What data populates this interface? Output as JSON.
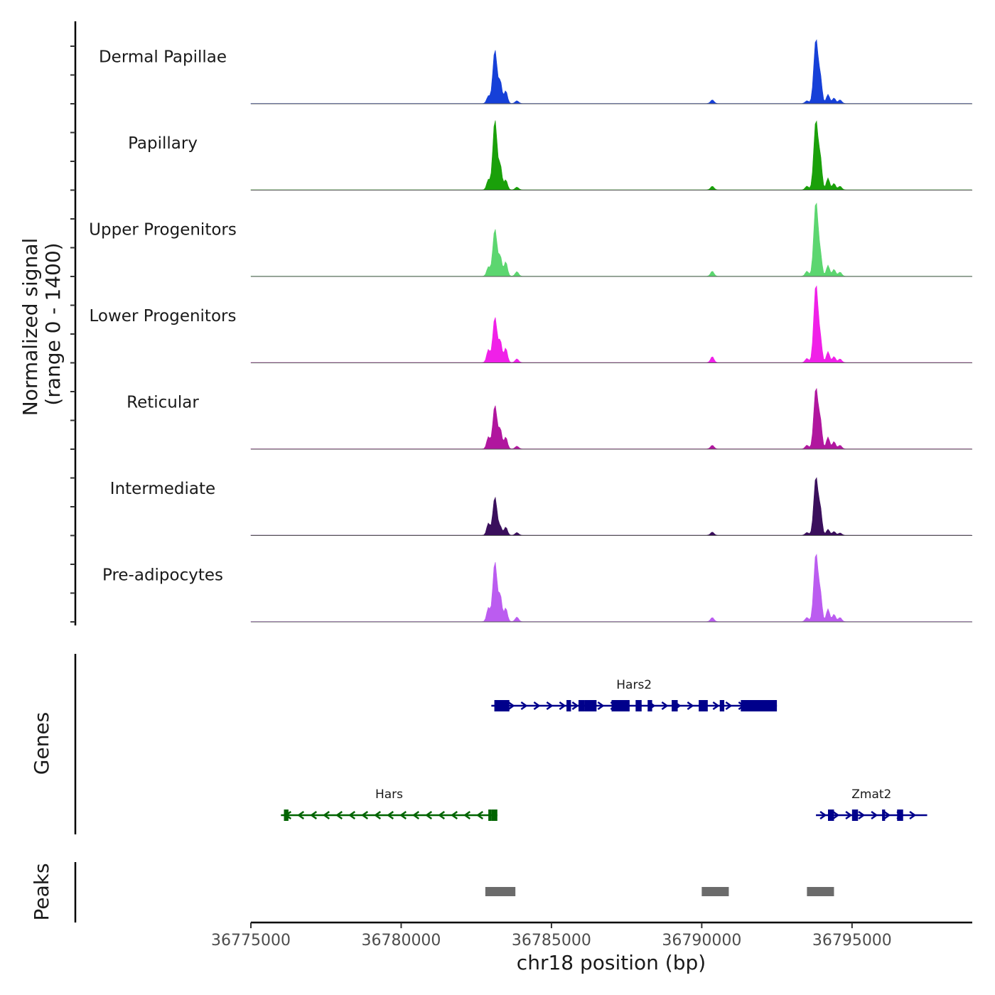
{
  "chart_data": {
    "type": "area",
    "title": "",
    "ylabel_line1": "Normalized signal",
    "ylabel_line2": "(range 0 - 1400)",
    "ylim": [
      0,
      1400
    ],
    "xlabel": "chr18 position (bp)",
    "xlim": [
      36775000,
      36799000
    ],
    "xticks": [
      36775000,
      36780000,
      36785000,
      36790000,
      36795000
    ],
    "xtick_labels": [
      "36775000",
      "36780000",
      "36785000",
      "36790000",
      "36795000"
    ],
    "peak_centers": [
      36782900,
      36783120,
      36783300,
      36783480,
      36783850,
      36790350,
      36793500,
      36793800,
      36793950,
      36794200,
      36794400,
      36794600
    ],
    "tracks": [
      {
        "name": "Dermal Papillae",
        "color": "#1640d8",
        "peak_heights": [
          160,
          1180,
          470,
          280,
          60,
          80,
          60,
          1420,
          520,
          200,
          120,
          80
        ]
      },
      {
        "name": "Papillary",
        "color": "#1aa00a",
        "peak_heights": [
          220,
          1540,
          520,
          220,
          60,
          80,
          80,
          1530,
          620,
          260,
          140,
          80
        ]
      },
      {
        "name": "Upper Progenitors",
        "color": "#5cd670",
        "peak_heights": [
          200,
          1040,
          420,
          320,
          100,
          110,
          110,
          1640,
          420,
          240,
          150,
          90
        ]
      },
      {
        "name": "Lower Progenitors",
        "color": "#f020e8",
        "peak_heights": [
          280,
          1000,
          460,
          320,
          80,
          130,
          90,
          1720,
          460,
          240,
          130,
          80
        ]
      },
      {
        "name": "Reticular",
        "color": "#b0169e",
        "peak_heights": [
          260,
          960,
          420,
          260,
          60,
          80,
          80,
          1340,
          560,
          260,
          160,
          80
        ]
      },
      {
        "name": "Intermediate",
        "color": "#3a0f5c",
        "peak_heights": [
          260,
          840,
          180,
          180,
          60,
          70,
          60,
          1280,
          520,
          130,
          80,
          50
        ]
      },
      {
        "name": "Pre-adipocytes",
        "color": "#bb5cf0",
        "peak_heights": [
          300,
          1320,
          560,
          300,
          100,
          90,
          90,
          1500,
          560,
          280,
          160,
          90
        ]
      }
    ],
    "genes_label": "Genes",
    "genes": [
      {
        "name": "Hars2",
        "strand": "+",
        "start": 36783000,
        "end": 36792500,
        "row": 1,
        "color": "#00008b",
        "exons": [
          [
            36783100,
            36783600
          ],
          [
            36785500,
            36785650
          ],
          [
            36785900,
            36786100
          ],
          [
            36786100,
            36786500
          ],
          [
            36787000,
            36787600
          ],
          [
            36787800,
            36788000
          ],
          [
            36788200,
            36788350
          ],
          [
            36789000,
            36789200
          ],
          [
            36789900,
            36790200
          ],
          [
            36790600,
            36790750
          ],
          [
            36791300,
            36792500
          ]
        ]
      },
      {
        "name": "Hars",
        "strand": "-",
        "start": 36776000,
        "end": 36783200,
        "row": 2,
        "color": "#006400",
        "exons": [
          [
            36776100,
            36776250
          ],
          [
            36782900,
            36783000
          ],
          [
            36783000,
            36783200
          ]
        ]
      },
      {
        "name": "Zmat2",
        "strand": "+",
        "start": 36793800,
        "end": 36797500,
        "row": 2,
        "color": "#00008b",
        "exons": [
          [
            36794200,
            36794400
          ],
          [
            36795000,
            36795200
          ],
          [
            36796000,
            36796100
          ],
          [
            36796500,
            36796700
          ]
        ]
      }
    ],
    "peaks_label": "Peaks",
    "peaks": [
      [
        36782800,
        36783800
      ],
      [
        36790000,
        36790900
      ],
      [
        36793500,
        36794400
      ]
    ],
    "peak_color": "#6b6b6b"
  }
}
